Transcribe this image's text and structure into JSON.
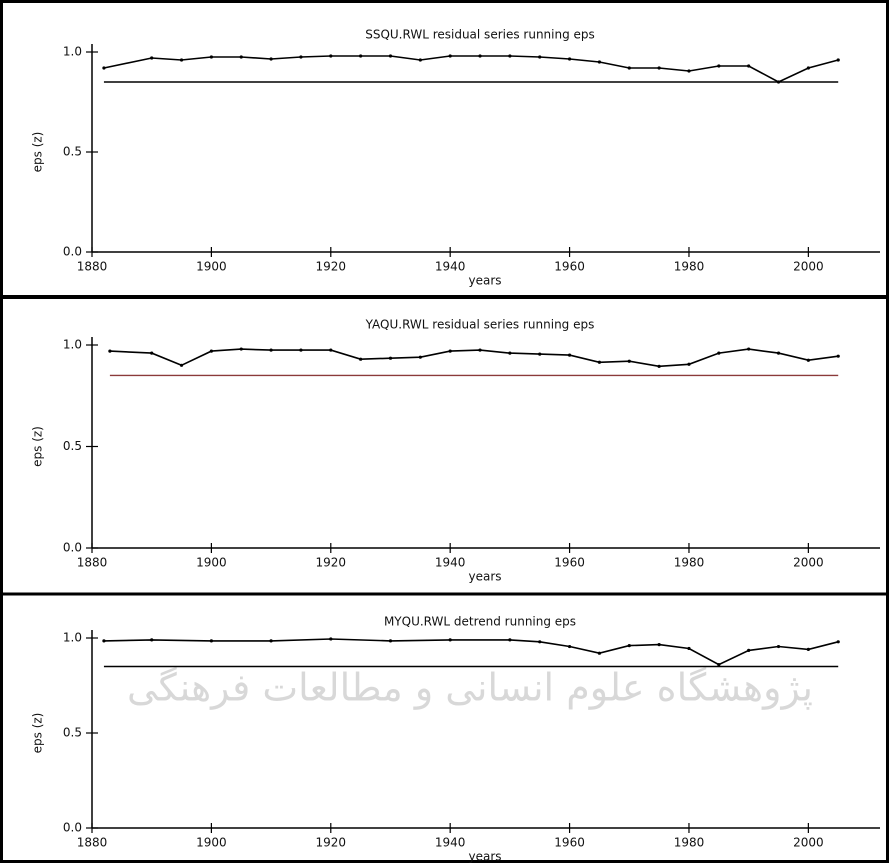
{
  "watermark": "پژوهشگاه علوم انسانی و مطالعات فرهنگی",
  "chart_data": [
    {
      "type": "line",
      "title": "SSQU.RWL residual series running eps",
      "x_label": "years",
      "y_label": "eps (z)",
      "xlim": [
        1880,
        2012
      ],
      "xticks": [
        1880,
        1900,
        1920,
        1940,
        1960,
        1980,
        2000
      ],
      "ylim": [
        0,
        1
      ],
      "yticks": [
        {
          "value": 0,
          "label": "0.0"
        },
        0.5,
        {
          "value": 1,
          "label": "1.0"
        }
      ],
      "x": [
        1882,
        1890,
        1895,
        1900,
        1905,
        1910,
        1915,
        1920,
        1925,
        1930,
        1935,
        1940,
        1945,
        1950,
        1955,
        1960,
        1965,
        1970,
        1975,
        1980,
        1985,
        1990,
        1995,
        2000,
        2005
      ],
      "series": [
        {
          "color": "#000000",
          "values": [
            0.92,
            0.97,
            0.96,
            0.975,
            0.975,
            0.965,
            0.975,
            0.98,
            0.98,
            0.98,
            0.96,
            0.98,
            0.98,
            0.98,
            0.975,
            0.965,
            0.95,
            0.92,
            0.92,
            0.905,
            0.93,
            0.93,
            0.85,
            0.92,
            0.96
          ]
        }
      ],
      "reference_line": {
        "y": 0.85,
        "x": [
          1882,
          2005
        ],
        "color": "#000000"
      }
    },
    {
      "type": "line",
      "title": "YAQU.RWL residual series running eps",
      "x_label": "years",
      "y_label": "eps (z)",
      "xlim": [
        1880,
        2012
      ],
      "xticks": [
        1880,
        1900,
        1920,
        1940,
        1960,
        1980,
        2000
      ],
      "ylim": [
        0,
        1
      ],
      "yticks": [
        {
          "value": 0,
          "label": "0.0"
        },
        0.5,
        {
          "value": 1,
          "label": "1.0"
        }
      ],
      "x": [
        1883,
        1890,
        1895,
        1900,
        1905,
        1910,
        1915,
        1920,
        1925,
        1930,
        1935,
        1940,
        1945,
        1950,
        1955,
        1960,
        1965,
        1970,
        1975,
        1980,
        1985,
        1990,
        1995,
        2000,
        2005
      ],
      "series": [
        {
          "color": "#000000",
          "values": [
            0.97,
            0.96,
            0.9,
            0.97,
            0.98,
            0.975,
            0.975,
            0.975,
            0.93,
            0.935,
            0.94,
            0.97,
            0.975,
            0.96,
            0.955,
            0.95,
            0.915,
            0.92,
            0.895,
            0.905,
            0.96,
            0.98,
            0.96,
            0.925,
            0.945
          ]
        }
      ],
      "reference_line": {
        "y": 0.85,
        "x": [
          1883,
          2005
        ],
        "color": "#8b3a3a"
      }
    },
    {
      "type": "line",
      "title": "MYQU.RWL detrend running eps",
      "x_label": "years",
      "y_label": "eps (z)",
      "xlim": [
        1880,
        2012
      ],
      "xticks": [
        1880,
        1900,
        1920,
        1940,
        1960,
        1980,
        2000
      ],
      "ylim": [
        0,
        1
      ],
      "yticks": [
        {
          "value": 0,
          "label": "0.0"
        },
        0.5,
        {
          "value": 1,
          "label": "1.0"
        }
      ],
      "x": [
        1882,
        1890,
        1900,
        1910,
        1920,
        1930,
        1940,
        1950,
        1955,
        1960,
        1965,
        1970,
        1975,
        1980,
        1985,
        1990,
        1995,
        2000,
        2005
      ],
      "series": [
        {
          "color": "#000000",
          "values": [
            0.985,
            0.99,
            0.985,
            0.985,
            0.995,
            0.985,
            0.99,
            0.99,
            0.98,
            0.955,
            0.92,
            0.96,
            0.965,
            0.945,
            0.86,
            0.935,
            0.955,
            0.94,
            0.98
          ]
        }
      ],
      "reference_line": {
        "y": 0.85,
        "x": [
          1882,
          2005
        ],
        "color": "#000000"
      }
    }
  ]
}
